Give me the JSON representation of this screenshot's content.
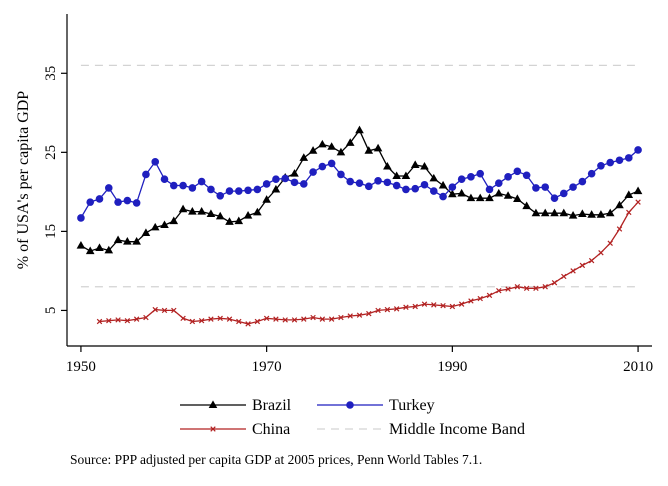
{
  "chart_data": {
    "type": "line",
    "title": "",
    "xlabel": "",
    "ylabel": "% of USA's per capita GDP",
    "xlim": [
      1948.5,
      2011.5
    ],
    "ylim": [
      0.5,
      42.5
    ],
    "xticks": [
      1950,
      1970,
      1990,
      2010
    ],
    "yticks": [
      5,
      15,
      25,
      35
    ],
    "grid": false,
    "legend_position": "bottom",
    "series": [
      {
        "name": "Brazil",
        "color": "#000000",
        "marker": "triangle",
        "x": [
          1950,
          1951,
          1952,
          1953,
          1954,
          1955,
          1956,
          1957,
          1958,
          1959,
          1960,
          1961,
          1962,
          1963,
          1964,
          1965,
          1966,
          1967,
          1968,
          1969,
          1970,
          1971,
          1972,
          1973,
          1974,
          1975,
          1976,
          1977,
          1978,
          1979,
          1980,
          1981,
          1982,
          1983,
          1984,
          1985,
          1986,
          1987,
          1988,
          1989,
          1990,
          1991,
          1992,
          1993,
          1994,
          1995,
          1996,
          1997,
          1998,
          1999,
          2000,
          2001,
          2002,
          2003,
          2004,
          2005,
          2006,
          2007,
          2008,
          2009,
          2010
        ],
        "y": [
          13.2,
          12.5,
          12.9,
          12.6,
          13.9,
          13.7,
          13.7,
          14.8,
          15.5,
          15.8,
          16.3,
          17.8,
          17.5,
          17.5,
          17.2,
          16.9,
          16.2,
          16.3,
          17.0,
          17.4,
          19.0,
          20.3,
          21.8,
          22.3,
          24.3,
          25.2,
          26.0,
          25.7,
          25.0,
          26.2,
          27.8,
          25.2,
          25.5,
          23.2,
          22.0,
          22.0,
          23.4,
          23.2,
          21.7,
          20.8,
          19.7,
          19.8,
          19.2,
          19.2,
          19.2,
          19.8,
          19.5,
          19.1,
          18.2,
          17.3,
          17.3,
          17.3,
          17.3,
          17.0,
          17.2,
          17.1,
          17.1,
          17.3,
          18.3,
          19.6,
          20.1
        ]
      },
      {
        "name": "Turkey",
        "color": "#1f1fbf",
        "marker": "circle",
        "x": [
          1950,
          1951,
          1952,
          1953,
          1954,
          1955,
          1956,
          1957,
          1958,
          1959,
          1960,
          1961,
          1962,
          1963,
          1964,
          1965,
          1966,
          1967,
          1968,
          1969,
          1970,
          1971,
          1972,
          1973,
          1974,
          1975,
          1976,
          1977,
          1978,
          1979,
          1980,
          1981,
          1982,
          1983,
          1984,
          1985,
          1986,
          1987,
          1988,
          1989,
          1990,
          1991,
          1992,
          1993,
          1994,
          1995,
          1996,
          1997,
          1998,
          1999,
          2000,
          2001,
          2002,
          2003,
          2004,
          2005,
          2006,
          2007,
          2008,
          2009,
          2010
        ],
        "y": [
          16.7,
          18.7,
          19.1,
          20.5,
          18.7,
          18.9,
          18.6,
          22.2,
          23.8,
          21.6,
          20.8,
          20.8,
          20.5,
          21.3,
          20.3,
          19.5,
          20.1,
          20.1,
          20.2,
          20.3,
          21.0,
          21.6,
          21.7,
          21.2,
          21.0,
          22.5,
          23.2,
          23.6,
          22.2,
          21.3,
          21.1,
          20.7,
          21.4,
          21.2,
          20.8,
          20.3,
          20.4,
          20.9,
          20.1,
          19.4,
          20.6,
          21.6,
          21.9,
          22.3,
          20.3,
          21.1,
          21.9,
          22.6,
          22.1,
          20.5,
          20.6,
          19.2,
          19.8,
          20.6,
          21.3,
          22.3,
          23.3,
          23.7,
          24.0,
          24.3,
          25.3
        ]
      },
      {
        "name": "China",
        "color": "#b22222",
        "marker": "x",
        "x": [
          1952,
          1953,
          1954,
          1955,
          1956,
          1957,
          1958,
          1959,
          1960,
          1961,
          1962,
          1963,
          1964,
          1965,
          1966,
          1967,
          1968,
          1969,
          1970,
          1971,
          1972,
          1973,
          1974,
          1975,
          1976,
          1977,
          1978,
          1979,
          1980,
          1981,
          1982,
          1983,
          1984,
          1985,
          1986,
          1987,
          1988,
          1989,
          1990,
          1991,
          1992,
          1993,
          1994,
          1995,
          1996,
          1997,
          1998,
          1999,
          2000,
          2001,
          2002,
          2003,
          2004,
          2005,
          2006,
          2007,
          2008,
          2009,
          2010
        ],
        "y": [
          3.6,
          3.7,
          3.8,
          3.7,
          3.9,
          4.1,
          5.1,
          5.0,
          5.0,
          4.0,
          3.6,
          3.7,
          3.9,
          4.0,
          3.9,
          3.6,
          3.3,
          3.6,
          4.0,
          3.9,
          3.8,
          3.8,
          3.9,
          4.1,
          3.9,
          3.9,
          4.1,
          4.3,
          4.4,
          4.6,
          5.0,
          5.1,
          5.2,
          5.4,
          5.5,
          5.8,
          5.7,
          5.6,
          5.5,
          5.8,
          6.2,
          6.5,
          6.9,
          7.5,
          7.7,
          8.0,
          7.8,
          7.8,
          8.0,
          8.5,
          9.3,
          10.0,
          10.7,
          11.3,
          12.3,
          13.5,
          15.3,
          17.4,
          18.7
        ]
      }
    ],
    "reference_band": {
      "name": "Middle Income Band",
      "lower": 8.0,
      "upper": 36.0,
      "color": "#d3d3d3",
      "style": "dashed"
    },
    "legend": [
      "Brazil",
      "Turkey",
      "China",
      "Middle Income Band"
    ],
    "note": "Source: PPP adjusted per capita GDP at 2005 prices, Penn World Tables 7.1."
  }
}
